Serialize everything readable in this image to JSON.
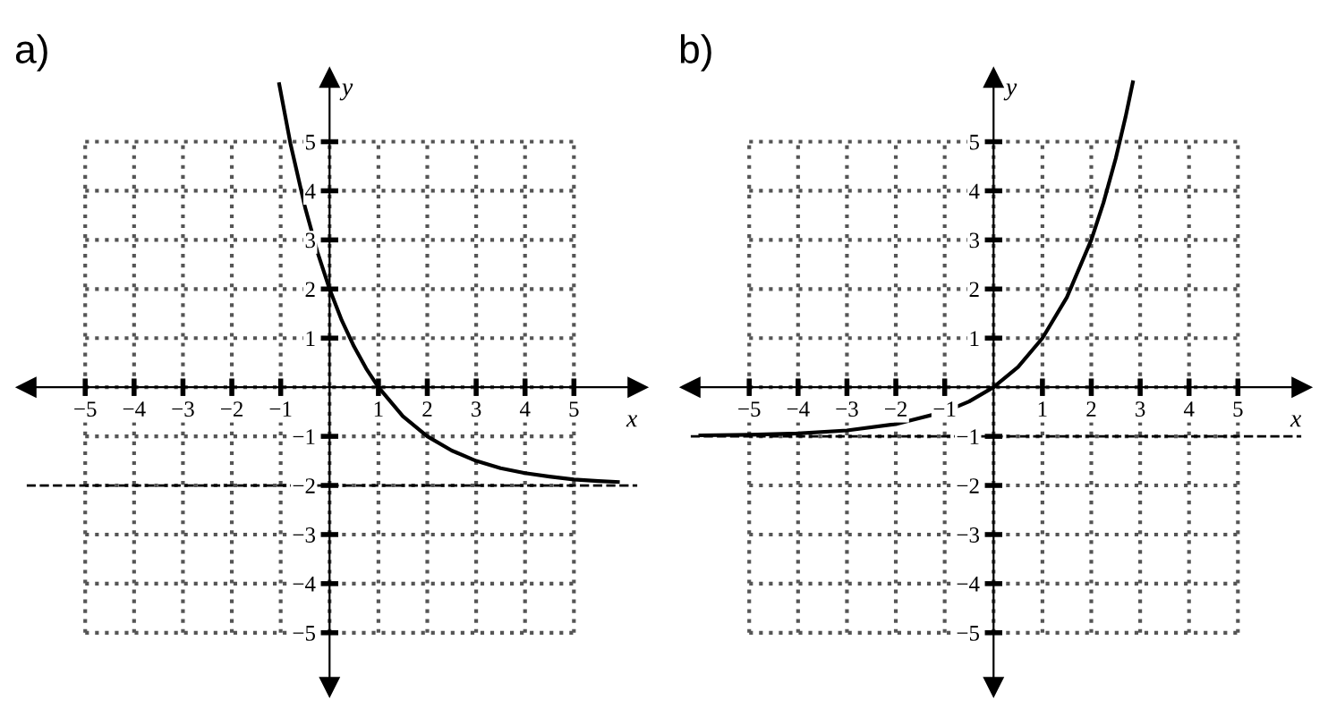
{
  "chart_data": [
    {
      "type": "line",
      "title": "a)",
      "xlabel": "x",
      "ylabel": "y",
      "x": [
        -1.03,
        -0.8,
        -0.5,
        -0.25,
        0,
        0.25,
        0.5,
        0.75,
        1,
        1.5,
        2,
        2.5,
        3,
        3.5,
        4,
        4.5,
        5,
        5.5,
        5.9
      ],
      "series": [
        {
          "color": "#000000",
          "values": [
            6.17,
            4.96,
            3.66,
            2.76,
            2,
            1.36,
            0.83,
            0.38,
            0,
            -0.59,
            -1,
            -1.29,
            -1.5,
            -1.65,
            -1.75,
            -1.82,
            -1.88,
            -1.91,
            -1.93
          ]
        }
      ],
      "xlim": [
        -6.2,
        6.3
      ],
      "ylim": [
        -6.1,
        6.3
      ],
      "xticks": [
        {
          "value": -5,
          "label": "−5"
        },
        {
          "value": -4,
          "label": "−4"
        },
        {
          "value": -3,
          "label": "−3"
        },
        {
          "value": -2,
          "label": "−2"
        },
        {
          "value": -1,
          "label": "−1"
        },
        1,
        2,
        3,
        4,
        5
      ],
      "yticks": [
        {
          "value": -5,
          "label": "−5"
        },
        {
          "value": -4,
          "label": "−4"
        },
        {
          "value": -3,
          "label": "−3"
        },
        {
          "value": -2,
          "label": "−2"
        },
        {
          "value": -1,
          "label": "−1"
        },
        1,
        2,
        3,
        4,
        5
      ],
      "grid": true,
      "marker": "none",
      "line_style": "solid",
      "ref_lines": [
        {
          "axis": "y",
          "value": -2,
          "color": "#000000",
          "line_style": "dashed"
        }
      ]
    },
    {
      "type": "line",
      "title": "b)",
      "xlabel": "x",
      "ylabel": "y",
      "x": [
        -6,
        -5,
        -4,
        -3,
        -2,
        -1,
        -0.5,
        0,
        0.5,
        1,
        1.5,
        2,
        2.25,
        2.5,
        2.7,
        2.85
      ],
      "series": [
        {
          "color": "#000000",
          "values": [
            -0.98,
            -0.97,
            -0.94,
            -0.88,
            -0.75,
            -0.5,
            -0.29,
            0,
            0.41,
            1,
            1.83,
            3,
            3.76,
            4.66,
            5.5,
            6.21
          ]
        }
      ],
      "xlim": [
        -6.2,
        6.3
      ],
      "ylim": [
        -6.1,
        6.3
      ],
      "xticks": [
        {
          "value": -5,
          "label": "−5"
        },
        {
          "value": -4,
          "label": "−4"
        },
        {
          "value": -3,
          "label": "−3"
        },
        {
          "value": -2,
          "label": "−2"
        },
        {
          "value": -1,
          "label": "−1"
        },
        1,
        2,
        3,
        4,
        5
      ],
      "yticks": [
        {
          "value": -5,
          "label": "−5"
        },
        {
          "value": -4,
          "label": "−4"
        },
        {
          "value": -3,
          "label": "−3"
        },
        {
          "value": -2,
          "label": "−2"
        },
        {
          "value": -1,
          "label": "−1"
        },
        1,
        2,
        3,
        4,
        5
      ],
      "grid": true,
      "marker": "none",
      "line_style": "solid",
      "ref_lines": [
        {
          "axis": "y",
          "value": -1,
          "color": "#000000",
          "line_style": "dashed"
        }
      ]
    }
  ]
}
